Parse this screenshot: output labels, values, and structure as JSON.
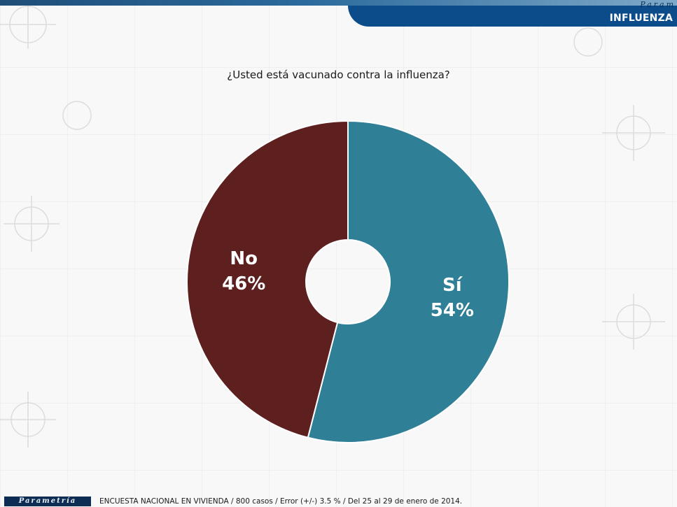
{
  "header": {
    "brand_tag": "Param",
    "section_title": "INFLUENZA"
  },
  "chart_data": {
    "type": "pie",
    "title": "¿Usted está vacunado contra la influenza?",
    "donut": true,
    "series": [
      {
        "label": "Sí",
        "value": 54,
        "value_label": "54%",
        "color": "#2f7f96"
      },
      {
        "label": "No",
        "value": 46,
        "value_label": "46%",
        "color": "#5e1f1f"
      }
    ]
  },
  "footer": {
    "logo_text": "Parametría",
    "note": "ENCUESTA NACIONAL EN VIVIENDA / 800 casos / Error (+/-) 3.5 % / Del 25 al 29 de enero de 2014."
  }
}
